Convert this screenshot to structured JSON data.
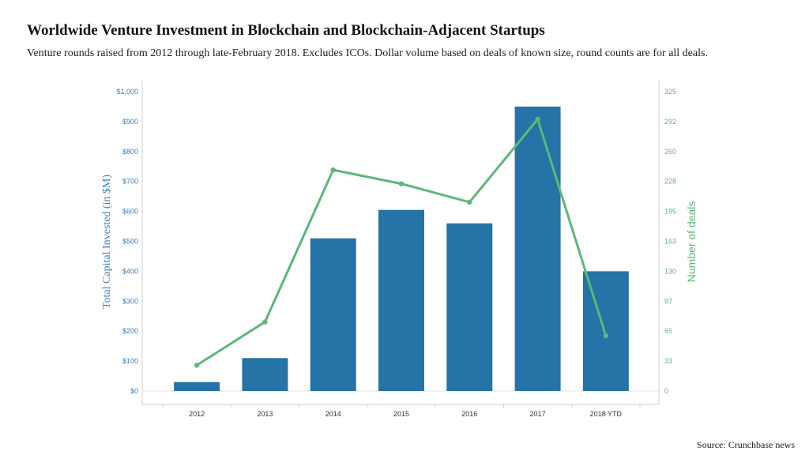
{
  "header": {
    "title": "Worldwide Venture Investment in Blockchain and Blockchain-Adjacent Startups",
    "subtitle": "Venture rounds raised from 2012 through late-February 2018. Excludes ICOs. Dollar volume based on deals of  known size, round counts are for all deals."
  },
  "footer": {
    "source": "Source: Crunchbase news"
  },
  "colors": {
    "bar": "#2573a7",
    "line": "#5cb87a",
    "left_axis": "#3f7fb5",
    "right_axis": "#5cb87a"
  },
  "chart_data": {
    "type": "bar",
    "title": "Worldwide Venture Investment in Blockchain and Blockchain-Adjacent Startups",
    "subtitle": "Venture rounds raised from 2012 through late-February 2018. Excludes ICOs. Dollar volume based on deals of  known size, round counts are for all deals.",
    "categories": [
      "2012",
      "2013",
      "2014",
      "2015",
      "2016",
      "2017",
      "2018 YTD"
    ],
    "series": [
      {
        "name": "Total Capital Invested (in $M)",
        "type": "bar",
        "axis": "left",
        "values": [
          30,
          110,
          510,
          605,
          560,
          950,
          400
        ]
      },
      {
        "name": "Number of deals",
        "type": "line",
        "axis": "right",
        "values": [
          28,
          75,
          240,
          225,
          205,
          295,
          60
        ]
      }
    ],
    "ylabel": "Total Capital Invested (in $M)",
    "ylabel_right": "Number of deals",
    "ylim": [
      0,
      1000
    ],
    "ylim_right": [
      0,
      325
    ],
    "yticks": [
      "$0",
      "$100",
      "$200",
      "$300",
      "$400",
      "$500",
      "$600",
      "$700",
      "$800",
      "$900",
      "$1,000"
    ],
    "yticks_right": [
      "0",
      "33",
      "65",
      "97",
      "130",
      "163",
      "195",
      "228",
      "260",
      "292",
      "325"
    ],
    "grid": false,
    "legend": "none"
  }
}
